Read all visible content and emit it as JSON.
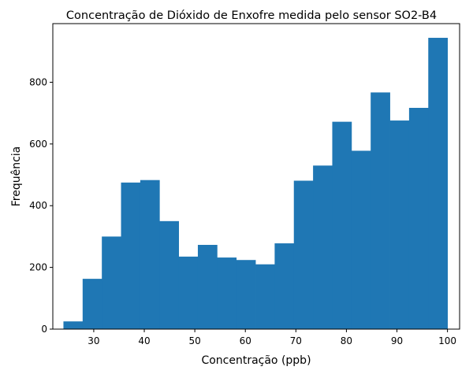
{
  "chart_data": {
    "type": "bar",
    "title": "Concentração de Dióxido de Enxofre medida pelo sensor SO2-B4",
    "xlabel": "Concentração (ppb)",
    "ylabel": "Frequência",
    "xlim": [
      21.9,
      102.4
    ],
    "ylim": [
      0,
      990
    ],
    "grid": false,
    "legend": "none",
    "bar_color": "#1f77b4",
    "bin_edges": [
      24.0,
      27.8,
      31.6,
      35.4,
      39.2,
      43.0,
      46.8,
      50.6,
      54.4,
      58.2,
      62.0,
      65.8,
      69.6,
      73.4,
      77.2,
      81.0,
      84.8,
      88.6,
      92.4,
      96.2,
      100.0
    ],
    "values": [
      25,
      163,
      300,
      475,
      483,
      350,
      235,
      273,
      232,
      224,
      210,
      278,
      481,
      530,
      672,
      578,
      767,
      676,
      717,
      944
    ],
    "x_ticks": [
      30,
      40,
      50,
      60,
      70,
      80,
      90,
      100
    ],
    "y_ticks": [
      0,
      200,
      400,
      600,
      800
    ]
  }
}
